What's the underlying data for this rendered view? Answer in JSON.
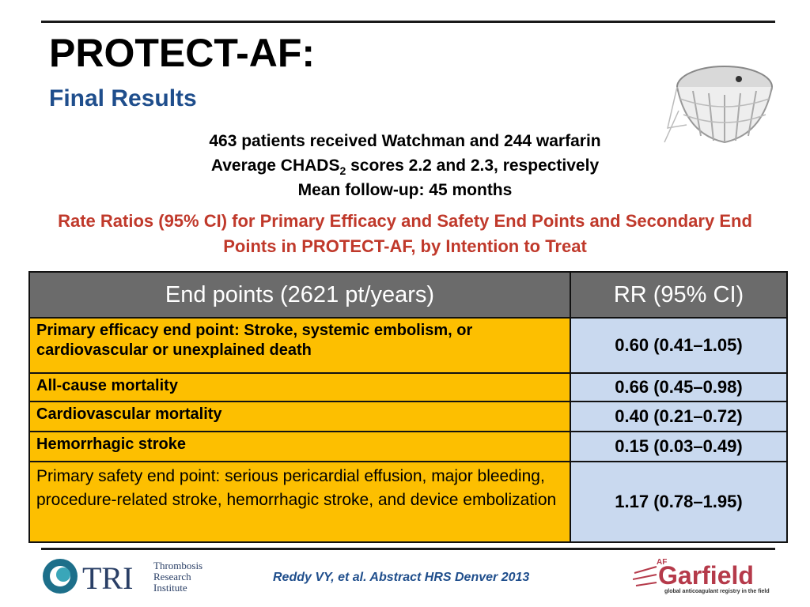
{
  "slide": {
    "title": "PROTECT-AF:",
    "subtitle": "Final Results",
    "summary": {
      "line1": "463 patients received Watchman and 244 warfarin",
      "line2_pre": "Average CHADS",
      "line2_sub": "2",
      "line2_post": " scores 2.2 and 2.3, respectively",
      "line3": "Mean follow-up: 45 months"
    },
    "table_caption": "Rate Ratios (95% CI) for Primary Efficacy and Safety End Points and Secondary End Points in PROTECT-AF, by Intention to Treat",
    "table": {
      "headers": [
        "End points (2621 pt/years)",
        "RR (95% CI)"
      ],
      "rows": [
        {
          "endpoint": "Primary efficacy end point: Stroke, systemic embolism, or cardiovascular or unexplained death",
          "rr": "0.60 (0.41–1.05)"
        },
        {
          "endpoint": "All-cause mortality",
          "rr": "0.66 (0.45–0.98)"
        },
        {
          "endpoint": "Cardiovascular mortality",
          "rr": "0.40 (0.21–0.72)"
        },
        {
          "endpoint": "Hemorrhagic stroke",
          "rr": "0.15 (0.03–0.49)"
        },
        {
          "endpoint": "Primary safety end point: serious pericardial effusion, major bleeding, procedure-related stroke, hemorrhagic stroke, and device embolization",
          "rr": "1.17 (0.78–1.95)"
        }
      ]
    },
    "citation": "Reddy VY, et al.  Abstract HRS Denver 2013",
    "logos": {
      "tri": {
        "mark": "TRI",
        "line1": "Thrombosis",
        "line2": "Research",
        "line3": "Institute"
      },
      "garfield": {
        "prefix": "AF",
        "name": "Garfield",
        "tagline": "global anticoagulant registry in the field"
      }
    },
    "colors": {
      "accent_blue": "#1f4e8c",
      "caption_red": "#c0392b",
      "row_orange": "#fdbf00",
      "rr_blue": "#c9d9ef",
      "header_gray": "#6b6b6b"
    }
  }
}
